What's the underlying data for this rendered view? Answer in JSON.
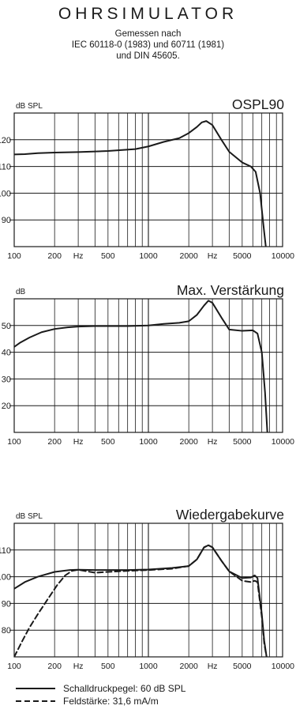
{
  "header": {
    "title": "OHRSIMULATOR",
    "subtitle_lines": [
      "Gemessen nach",
      "IEC 60118-0 (1983) und 60711 (1981)",
      "und DIN 45605."
    ]
  },
  "colors": {
    "line": "#1a1a1a",
    "grid": "#1a1a1a",
    "background": "#ffffff"
  },
  "chart_data": [
    {
      "type": "line",
      "title": "OSPL90",
      "unit_label": "dB SPL",
      "x_scale": "log",
      "xlim": [
        100,
        10000
      ],
      "ylim": [
        80,
        130
      ],
      "y_ticks": [
        90,
        100,
        110,
        120
      ],
      "x_tick_labels": [
        {
          "value": 100,
          "label": "100"
        },
        {
          "value": 200,
          "label": "200"
        },
        {
          "value": 300,
          "label": "Hz"
        },
        {
          "value": 500,
          "label": "500"
        },
        {
          "value": 1000,
          "label": "1000"
        },
        {
          "value": 2000,
          "label": "2000"
        },
        {
          "value": 3000,
          "label": "Hz"
        },
        {
          "value": 5000,
          "label": "5000"
        },
        {
          "value": 10000,
          "label": "10000"
        }
      ],
      "series": [
        {
          "style": "solid",
          "x": [
            100,
            120,
            150,
            200,
            300,
            500,
            800,
            1000,
            1300,
            1700,
            2000,
            2300,
            2500,
            2700,
            3000,
            3500,
            4000,
            5000,
            5800,
            6300,
            6800,
            7200,
            7500
          ],
          "y": [
            114.5,
            114.6,
            115.0,
            115.2,
            115.4,
            115.8,
            116.5,
            117.5,
            119.2,
            120.6,
            122.5,
            124.8,
            126.5,
            127.0,
            125.5,
            120.0,
            115.5,
            111.5,
            110.0,
            108.0,
            100.0,
            88.0,
            80.0
          ]
        }
      ]
    },
    {
      "type": "line",
      "title": "Max. Verstärkung",
      "unit_label": "dB",
      "x_scale": "log",
      "xlim": [
        100,
        10000
      ],
      "ylim": [
        10,
        60
      ],
      "y_ticks": [
        20,
        30,
        40,
        50
      ],
      "x_tick_labels": [
        {
          "value": 100,
          "label": "100"
        },
        {
          "value": 200,
          "label": "200"
        },
        {
          "value": 300,
          "label": "Hz"
        },
        {
          "value": 500,
          "label": "500"
        },
        {
          "value": 1000,
          "label": "1000"
        },
        {
          "value": 2000,
          "label": "2000"
        },
        {
          "value": 3000,
          "label": "Hz"
        },
        {
          "value": 5000,
          "label": "5000"
        },
        {
          "value": 10000,
          "label": "10000"
        }
      ],
      "series": [
        {
          "style": "solid",
          "x": [
            100,
            110,
            130,
            160,
            200,
            250,
            300,
            400,
            500,
            700,
            1000,
            1300,
            1700,
            2000,
            2300,
            2600,
            2800,
            3000,
            3500,
            4000,
            5000,
            6000,
            6500,
            7000,
            7400,
            7700
          ],
          "y": [
            42.0,
            43.5,
            45.5,
            47.5,
            48.7,
            49.3,
            49.6,
            49.8,
            49.8,
            49.8,
            50.0,
            50.6,
            51.0,
            51.6,
            54.0,
            57.5,
            59.3,
            58.5,
            53.0,
            48.5,
            48.0,
            48.2,
            47.0,
            40.0,
            25.0,
            10.0
          ]
        }
      ]
    },
    {
      "type": "line",
      "title": "Wiedergabekurve",
      "unit_label": "dB SPL",
      "x_scale": "log",
      "xlim": [
        100,
        10000
      ],
      "ylim": [
        70,
        120
      ],
      "y_ticks": [
        80,
        90,
        100,
        110
      ],
      "x_tick_labels": [
        {
          "value": 100,
          "label": "100"
        },
        {
          "value": 200,
          "label": "200"
        },
        {
          "value": 300,
          "label": "Hz"
        },
        {
          "value": 500,
          "label": "500"
        },
        {
          "value": 1000,
          "label": "1000"
        },
        {
          "value": 2000,
          "label": "2000"
        },
        {
          "value": 3000,
          "label": "Hz"
        },
        {
          "value": 5000,
          "label": "5000"
        },
        {
          "value": 10000,
          "label": "10000"
        }
      ],
      "series": [
        {
          "style": "solid",
          "x": [
            100,
            120,
            150,
            200,
            260,
            300,
            400,
            500,
            700,
            1000,
            1500,
            2000,
            2300,
            2600,
            2800,
            3000,
            3500,
            4000,
            5000,
            5800,
            6200,
            6500,
            7000,
            7300,
            7600
          ],
          "y": [
            95.5,
            98.0,
            100.0,
            101.8,
            102.5,
            102.6,
            102.5,
            102.5,
            102.5,
            102.7,
            103.3,
            104.0,
            106.5,
            111.0,
            111.8,
            111.0,
            106.0,
            102.0,
            99.5,
            99.7,
            100.5,
            99.5,
            86.0,
            76.0,
            70.0
          ]
        },
        {
          "style": "dashed",
          "x": [
            100,
            115,
            130,
            150,
            180,
            210,
            240,
            270,
            300,
            400,
            500,
            700,
            1000,
            1500,
            2000,
            2300,
            2600,
            2800,
            3000,
            3500,
            4000,
            5000,
            5800,
            6200,
            6500,
            7000,
            7300,
            7600
          ],
          "y": [
            70.0,
            76.0,
            81.0,
            86.0,
            92.0,
            97.0,
            100.5,
            102.2,
            102.6,
            101.5,
            101.8,
            102.2,
            102.5,
            103.0,
            104.0,
            106.5,
            111.0,
            111.8,
            111.0,
            106.0,
            102.0,
            98.5,
            98.0,
            98.5,
            98.0,
            85.0,
            75.0,
            70.0
          ]
        }
      ]
    }
  ],
  "legend": [
    {
      "style": "solid",
      "label": "Schalldruckpegel: 60 dB SPL"
    },
    {
      "style": "dashed",
      "label": "Feldstärke: 31,6 mA/m"
    }
  ]
}
